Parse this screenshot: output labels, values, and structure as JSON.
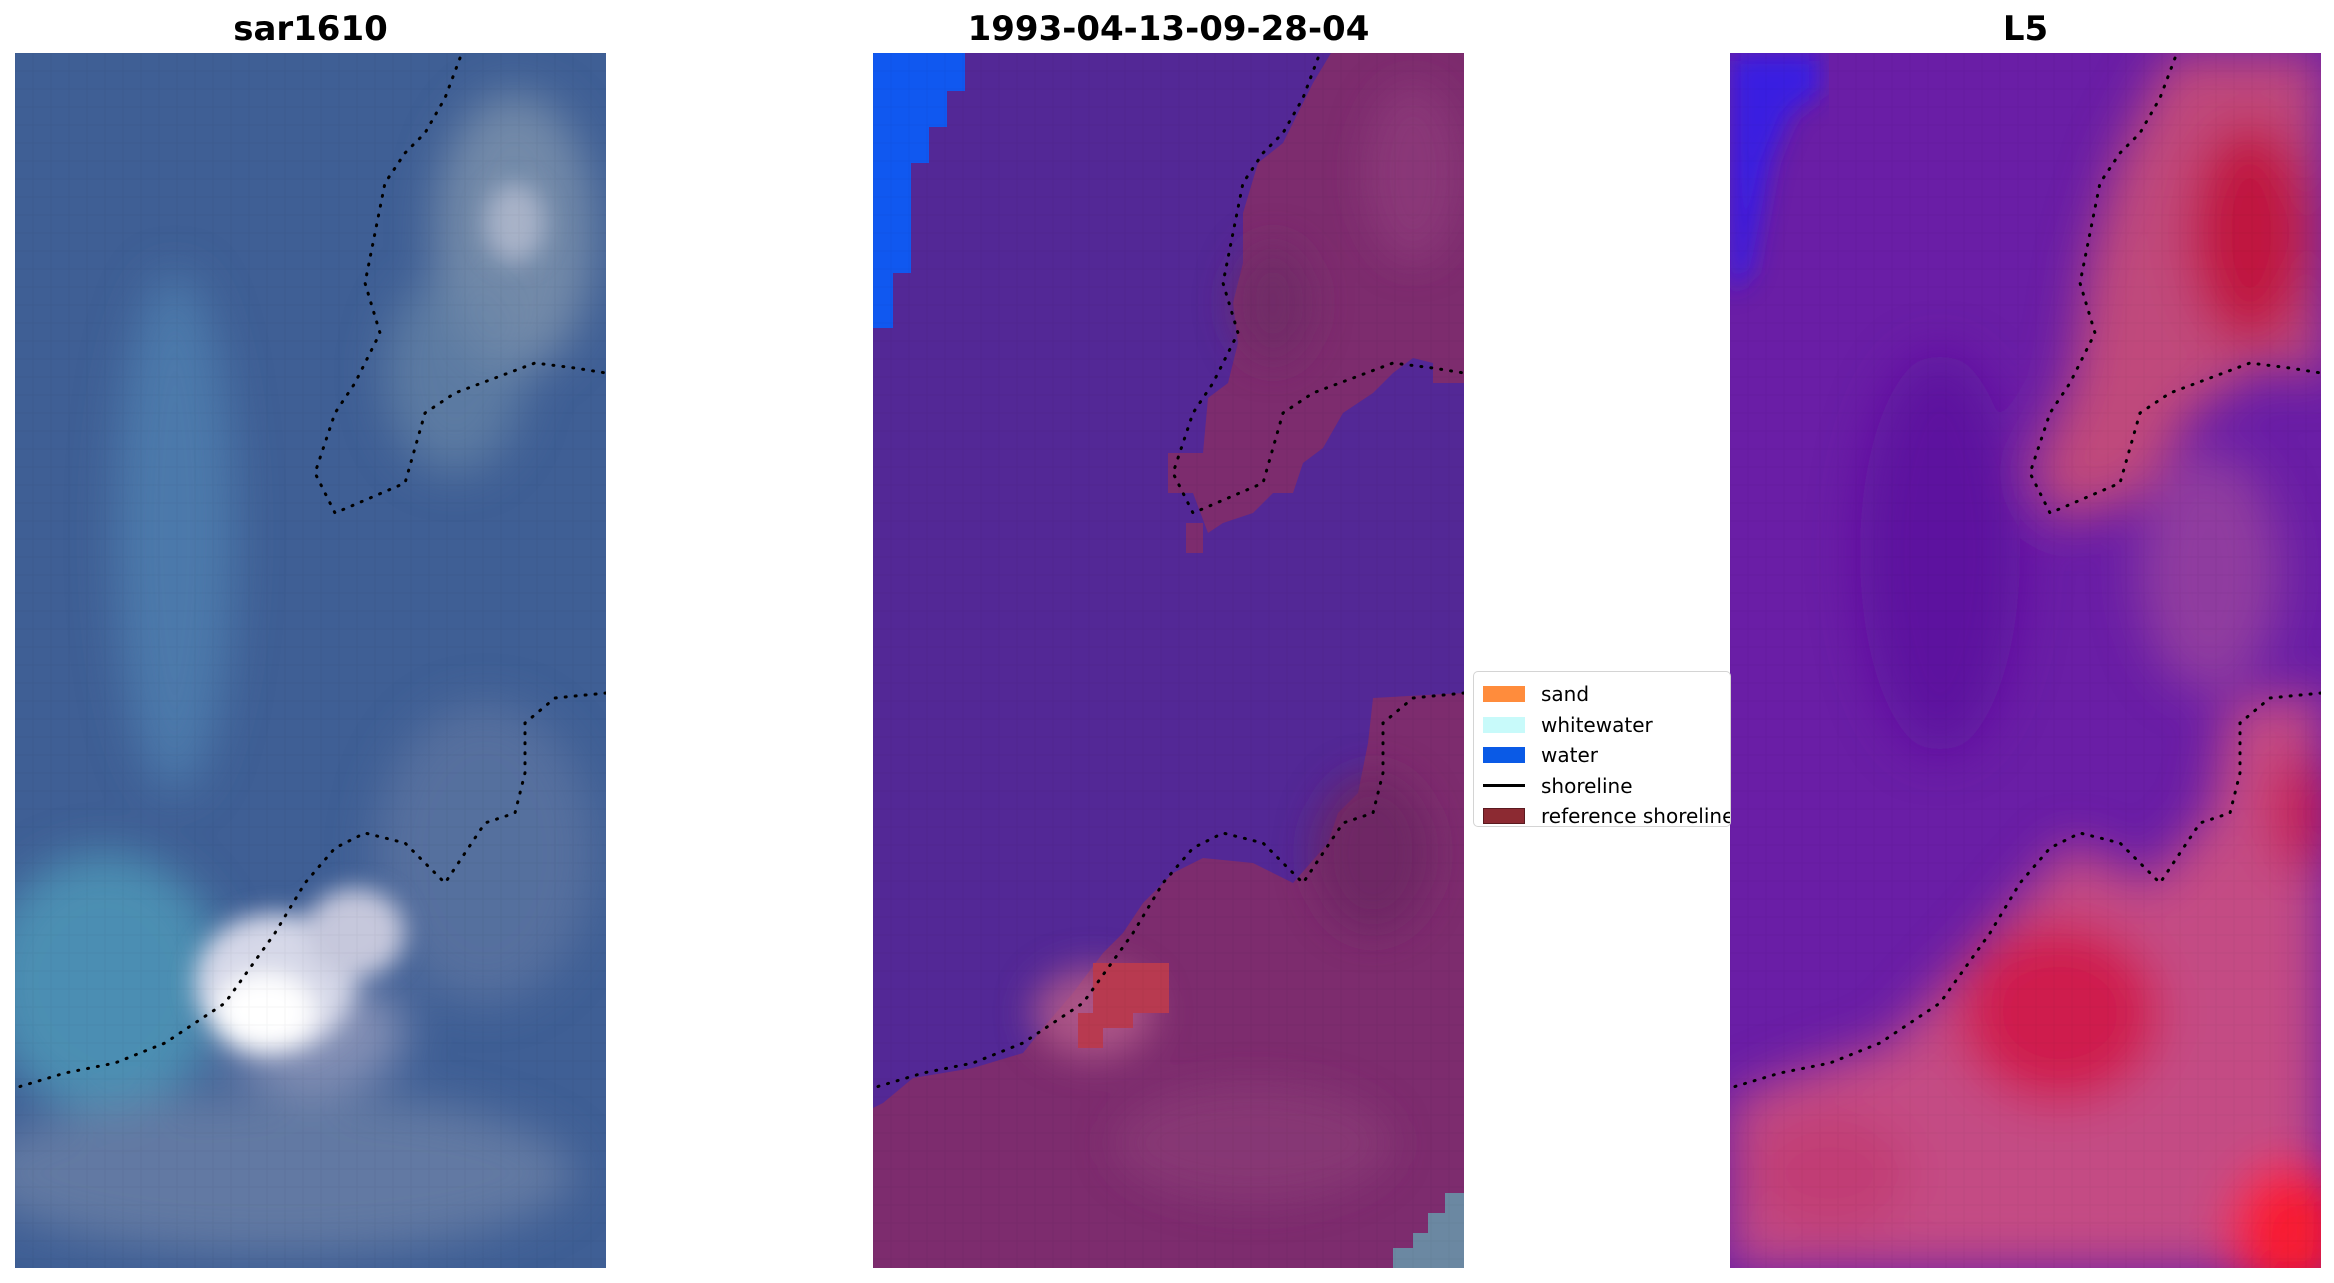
{
  "panels": [
    {
      "title": "sar1610",
      "kind": "rgb-image"
    },
    {
      "title": "1993-04-13-09-28-04",
      "kind": "classified-image"
    },
    {
      "title": "L5",
      "kind": "probability-image"
    }
  ],
  "legend": {
    "items": [
      {
        "label": "sand",
        "type": "patch",
        "color": "#ff8c3c"
      },
      {
        "label": "whitewater",
        "type": "patch",
        "color": "#c8fafa"
      },
      {
        "label": "water",
        "type": "patch",
        "color": "#0a5ae6"
      },
      {
        "label": "shoreline",
        "type": "line",
        "color": "#000000"
      },
      {
        "label": "reference shoreline",
        "type": "patch",
        "color": "#8c2a32"
      }
    ]
  },
  "colors": {
    "sar_water": "#3e5e96",
    "sar_surf": "#4a8fb4",
    "sar_foam": "#e8e8f0",
    "class_water": "#532896",
    "class_deep": "#1058f0",
    "class_land": "#7d2c6e",
    "class_sand_patch": "#b83a50",
    "l5_water": "#6a1ea6",
    "l5_land": "#c44c84",
    "l5_hot": "#e0103a"
  }
}
